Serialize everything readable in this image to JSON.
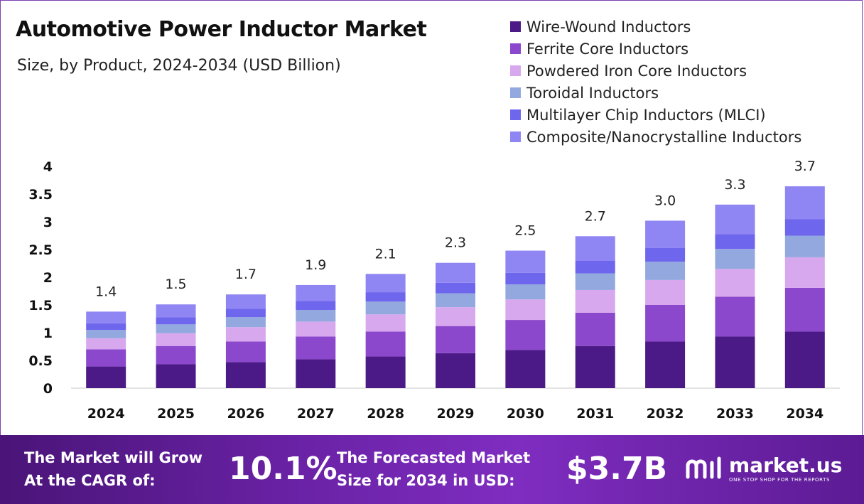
{
  "header": {
    "title": "Automotive Power Inductor Market",
    "subtitle": "Size, by Product, 2024-2034 (USD Billion)"
  },
  "chart_data": {
    "type": "bar",
    "stacked": true,
    "categories": [
      "2024",
      "2025",
      "2026",
      "2027",
      "2028",
      "2029",
      "2030",
      "2031",
      "2032",
      "2033",
      "2034"
    ],
    "totals_labels": [
      "1.4",
      "1.5",
      "1.7",
      "1.9",
      "2.1",
      "2.3",
      "2.5",
      "2.7",
      "3.0",
      "3.3",
      "3.7"
    ],
    "series": [
      {
        "name": "Wire-Wound Inductors",
        "color": "#4c1a86",
        "values": [
          0.39,
          0.43,
          0.47,
          0.52,
          0.57,
          0.63,
          0.69,
          0.76,
          0.84,
          0.93,
          1.02
        ]
      },
      {
        "name": "Ferrite Core Inductors",
        "color": "#8b48cc",
        "values": [
          0.31,
          0.33,
          0.37,
          0.41,
          0.45,
          0.49,
          0.54,
          0.6,
          0.66,
          0.72,
          0.79
        ]
      },
      {
        "name": "Powdered Iron Core Inductors",
        "color": "#d8a8ee",
        "values": [
          0.2,
          0.23,
          0.26,
          0.27,
          0.31,
          0.34,
          0.37,
          0.41,
          0.45,
          0.5,
          0.55
        ]
      },
      {
        "name": "Toroidal Inductors",
        "color": "#92a8de",
        "values": [
          0.15,
          0.16,
          0.18,
          0.21,
          0.23,
          0.25,
          0.27,
          0.3,
          0.33,
          0.36,
          0.39
        ]
      },
      {
        "name": "Multilayer Chip Inductors (MLCI)",
        "color": "#6f66ee",
        "values": [
          0.12,
          0.13,
          0.15,
          0.16,
          0.17,
          0.19,
          0.21,
          0.23,
          0.25,
          0.27,
          0.3
        ]
      },
      {
        "name": "Composite/Nanocrystalline Inductors",
        "color": "#8f85f3",
        "values": [
          0.21,
          0.23,
          0.26,
          0.29,
          0.33,
          0.36,
          0.4,
          0.44,
          0.49,
          0.53,
          0.59
        ]
      }
    ],
    "yticks": [
      "0",
      "0.5",
      "1",
      "1.5",
      "2",
      "2.5",
      "3",
      "3.5",
      "4"
    ],
    "ylim": [
      0,
      4
    ],
    "xlabel": "",
    "ylabel": "",
    "legend": "top-right",
    "grid": false
  },
  "footer": {
    "cagr_text_line1": "The Market will Grow",
    "cagr_text_line2": "At the CAGR of:",
    "cagr_value": "10.1%",
    "forecast_text_line1": "The Forecasted Market",
    "forecast_text_line2": "Size for 2034 in USD:",
    "forecast_value": "$3.7B",
    "brand_name": "market.us",
    "brand_tagline": "ONE STOP SHOP FOR THE REPORTS"
  },
  "colors": {
    "footer_bg": "#6a22a6",
    "frame": "#7b3fb0",
    "axis": "#c8c8c8"
  },
  "icons": {
    "brand_logo": "market-us-logo-icon"
  }
}
